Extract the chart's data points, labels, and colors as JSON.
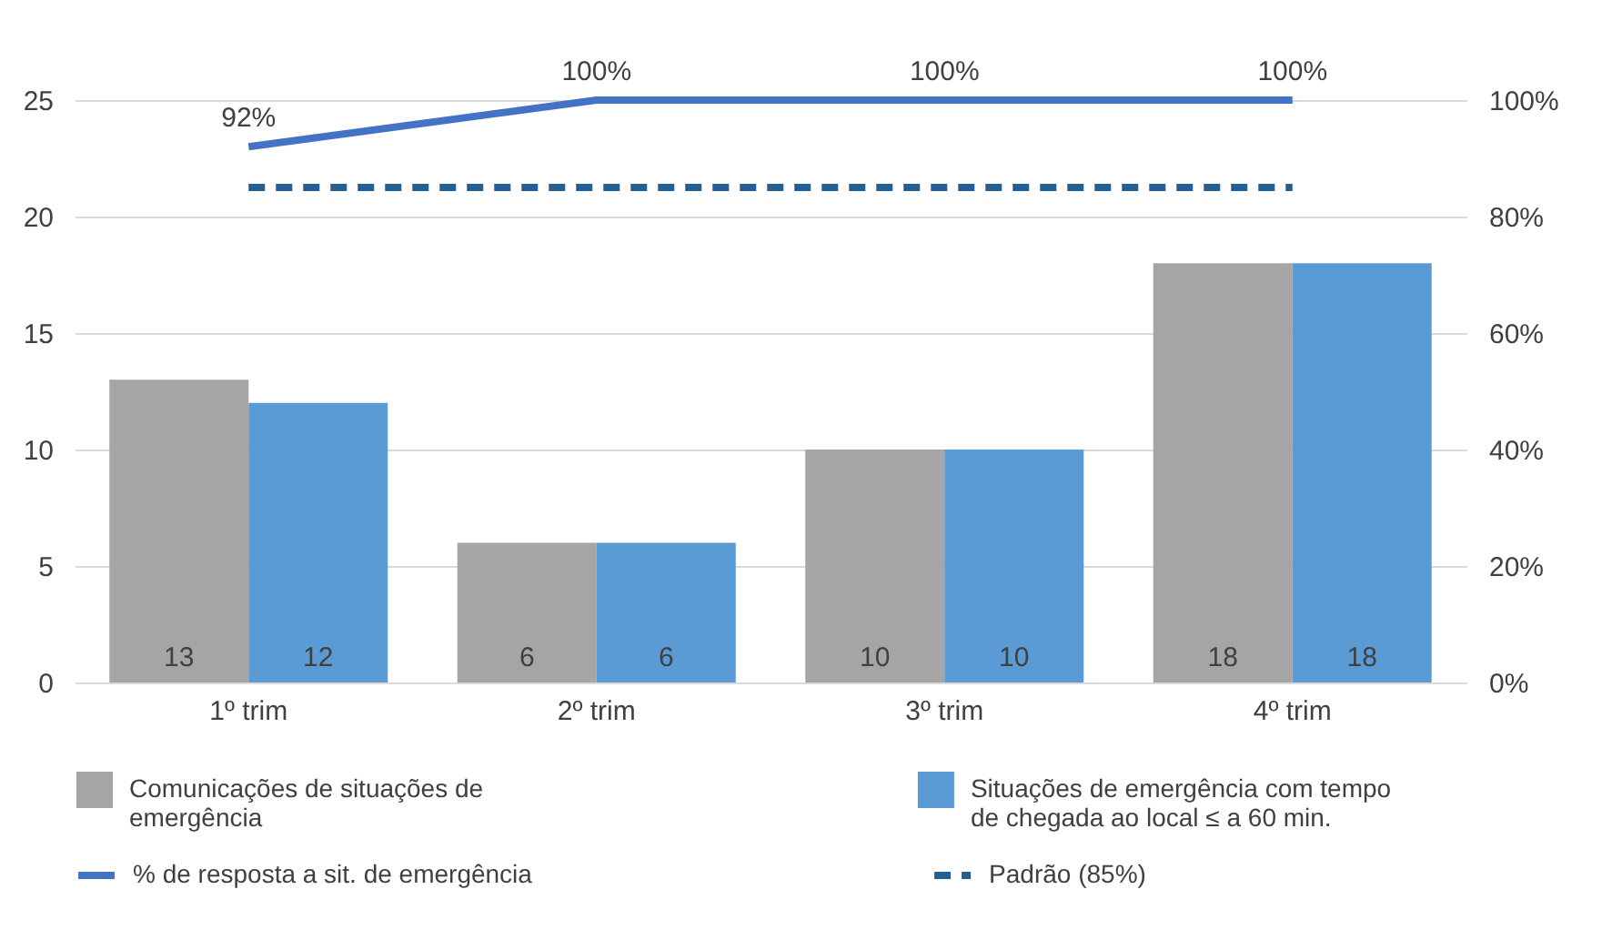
{
  "chart_data": {
    "type": "bar",
    "categories": [
      "1º trim",
      "2º trim",
      "3º trim",
      "4º trim"
    ],
    "series": [
      {
        "name": "Comunicações de situações de emergência",
        "color": "#a5a5a5",
        "values": [
          13,
          6,
          10,
          18
        ],
        "value_labels": [
          "13",
          "6",
          "10",
          "18"
        ]
      },
      {
        "name": "Situações de emergência com tempo de chegada ao local ≤ a 60 min.",
        "color": "#5b9bd5",
        "values": [
          12,
          6,
          10,
          18
        ],
        "value_labels": [
          "12",
          "6",
          "10",
          "18"
        ]
      },
      {
        "name": "% de resposta a sit. de emergência",
        "type": "line",
        "axis": "y2",
        "color": "#4472c4",
        "line_style": "solid",
        "values": [
          92,
          100,
          100,
          100
        ],
        "value_labels": [
          "92%",
          "100%",
          "100%",
          "100%"
        ]
      },
      {
        "name": "Padrão (85%)",
        "type": "line",
        "axis": "y2",
        "color": "#255e91",
        "line_style": "dashed",
        "values": [
          85,
          85,
          85,
          85
        ]
      }
    ],
    "ylim": [
      0,
      25
    ],
    "yticks": [
      0,
      5,
      10,
      15,
      20,
      25
    ],
    "y2lim": [
      0,
      100
    ],
    "y2ticks": [
      {
        "value": 0,
        "label": "0%"
      },
      {
        "value": 20,
        "label": "20%"
      },
      {
        "value": 40,
        "label": "40%"
      },
      {
        "value": 60,
        "label": "60%"
      },
      {
        "value": 80,
        "label": "80%"
      },
      {
        "value": 100,
        "label": "100%"
      }
    ],
    "grid": "y",
    "legend": "bottom",
    "marker": "none"
  }
}
